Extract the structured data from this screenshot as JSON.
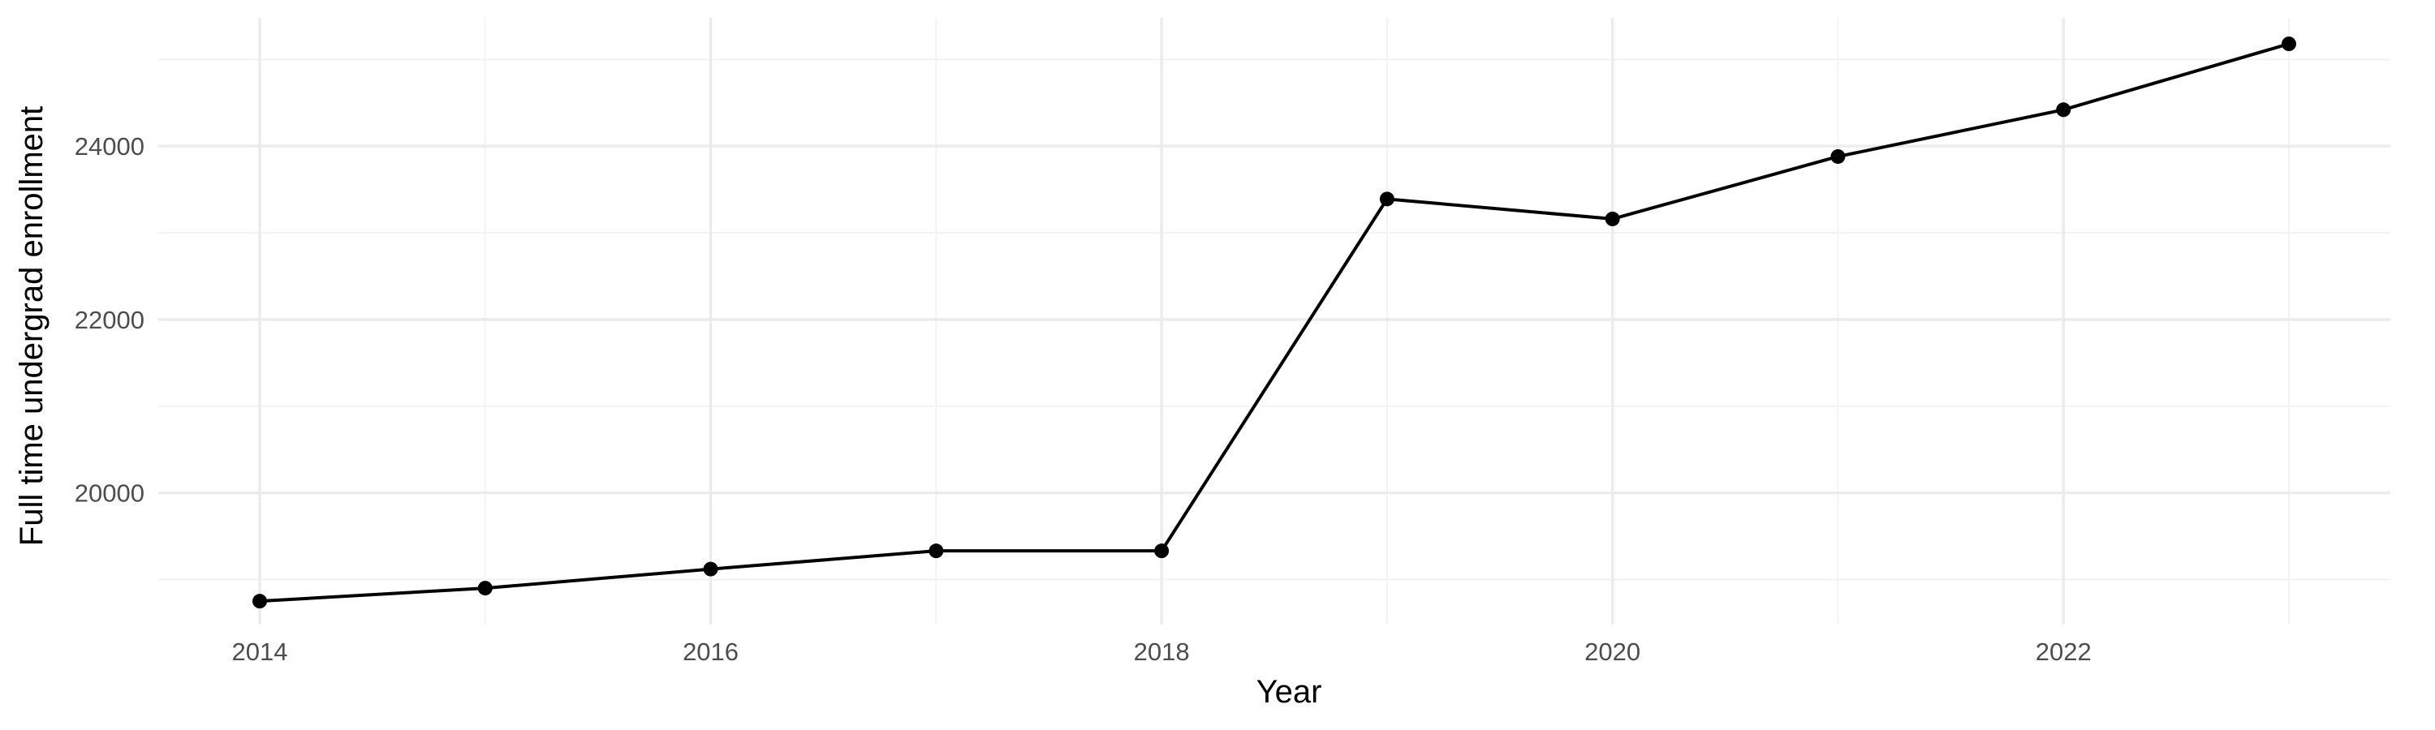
{
  "chart_data": {
    "type": "line",
    "title": "",
    "xlabel": "Year",
    "ylabel": "Full time undergrad enrollment",
    "x": [
      2014,
      2015,
      2016,
      2017,
      2018,
      2019,
      2020,
      2021,
      2022,
      2023
    ],
    "series": [
      {
        "values": [
          18750,
          18900,
          19120,
          19330,
          19330,
          23390,
          23160,
          23880,
          24420,
          25180
        ]
      }
    ],
    "xlim": [
      2013.55,
      2023.45
    ],
    "ylim": [
      18480,
      25480
    ],
    "x_major_ticks": [
      2014,
      2016,
      2018,
      2020,
      2022
    ],
    "x_minor_ticks": [
      2015,
      2017,
      2019,
      2021,
      2023
    ],
    "y_major_ticks": [
      20000,
      22000,
      24000
    ],
    "y_minor_ticks": [
      19000,
      21000,
      23000,
      25000
    ],
    "x_tick_labels": [
      "2014",
      "2016",
      "2018",
      "2020",
      "2022"
    ],
    "y_tick_labels": [
      "20000",
      "22000",
      "24000"
    ],
    "grid": true,
    "legend": "none",
    "colors": {
      "line": "#000000",
      "point": "#000000",
      "grid_major": "#ebebeb",
      "grid_minor": "#f3f3f3",
      "tick_text": "#4d4d4d"
    }
  }
}
